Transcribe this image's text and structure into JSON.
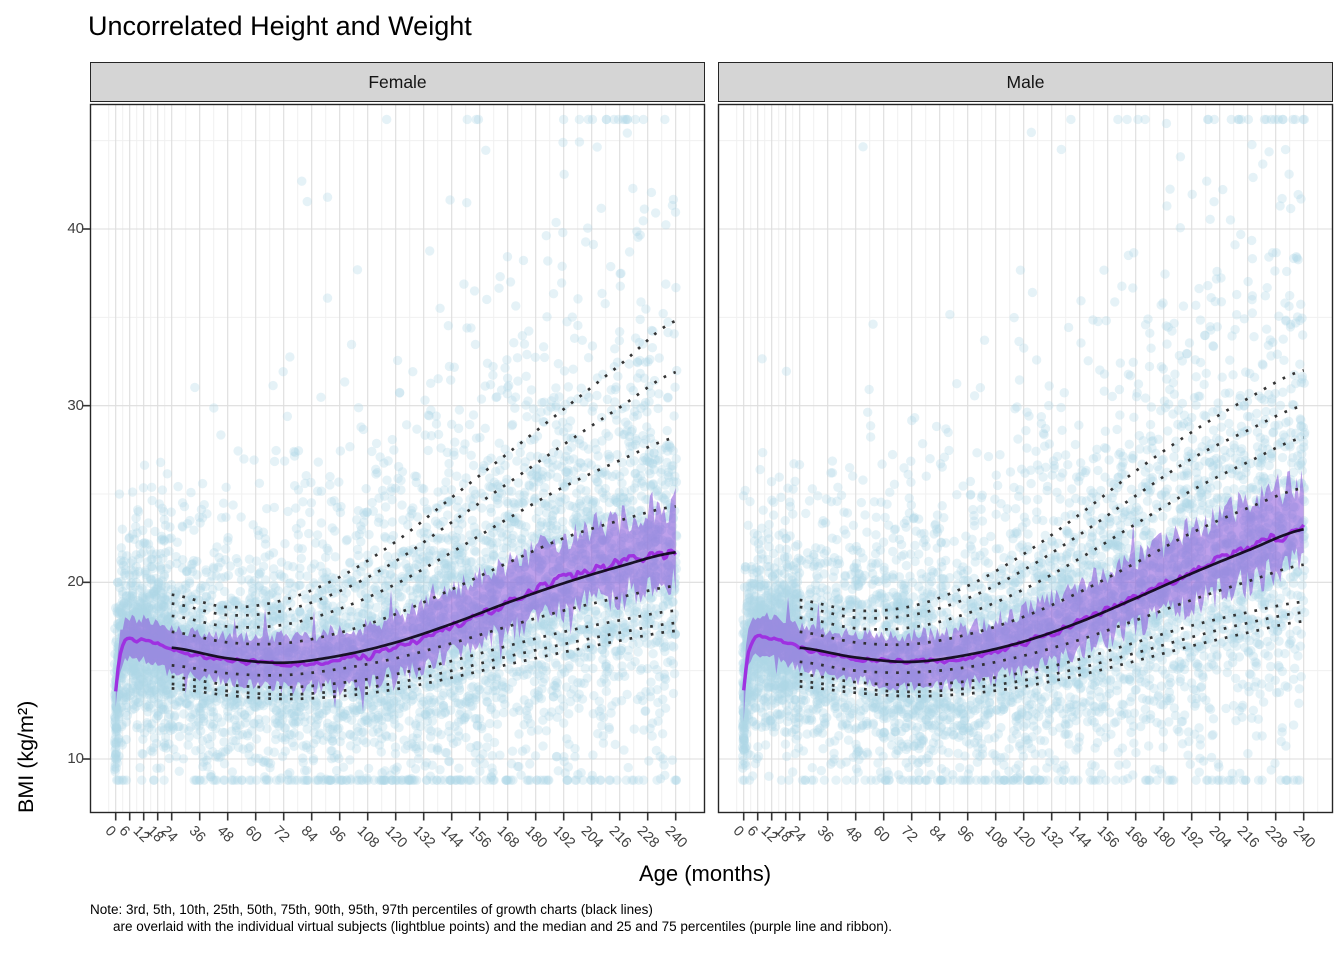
{
  "title": "Uncorrelated Height and Weight",
  "note": {
    "line1": "Note: 3rd, 5th, 10th, 25th, 50th, 75th, 90th, 95th, 97th percentiles of growth charts (black lines)",
    "line2": "are overlaid with the individual virtual subjects (lightblue points) and the median and 25 and 75 percentiles (purple line and ribbon)."
  },
  "chart_data": {
    "type": "scatter",
    "title": "Uncorrelated Height and Weight",
    "xlabel": "Age (months)",
    "ylabel": "BMI (kg/m²)",
    "x_ticks": [
      0,
      6,
      12,
      18,
      24,
      36,
      48,
      60,
      72,
      84,
      96,
      108,
      120,
      132,
      144,
      156,
      168,
      180,
      192,
      204,
      216,
      228,
      240
    ],
    "y_ticks": [
      10,
      20,
      30,
      40
    ],
    "y_minor": [
      15,
      25,
      35,
      45
    ],
    "xlim": [
      -11,
      252
    ],
    "ylim": [
      6.95,
      47.0
    ],
    "grid": true,
    "percentile_labels": [
      "3rd",
      "5th",
      "10th",
      "25th",
      "50th",
      "75th",
      "90th",
      "95th",
      "97th"
    ],
    "facets": [
      {
        "label": "Female",
        "seed": 7,
        "growth": {
          "months": [
            24,
            48,
            72,
            96,
            120,
            144,
            168,
            192,
            216,
            240
          ],
          "p3": [
            14.0,
            13.6,
            13.4,
            13.55,
            13.95,
            14.6,
            15.35,
            16.05,
            16.7,
            17.25
          ],
          "p5": [
            14.25,
            13.85,
            13.65,
            13.85,
            14.3,
            15.0,
            15.8,
            16.5,
            17.15,
            17.7
          ],
          "p10": [
            14.65,
            14.2,
            14.05,
            14.3,
            14.8,
            15.55,
            16.4,
            17.2,
            17.85,
            18.4
          ],
          "p25": [
            15.3,
            14.85,
            14.75,
            15.1,
            15.7,
            16.55,
            17.5,
            18.4,
            19.15,
            19.8
          ],
          "p50": [
            16.3,
            15.7,
            15.45,
            15.85,
            16.6,
            17.65,
            18.85,
            19.95,
            20.9,
            21.7
          ],
          "p75": [
            17.2,
            16.6,
            16.55,
            17.15,
            18.2,
            19.6,
            21.1,
            22.5,
            23.5,
            24.3
          ],
          "p90": [
            18.1,
            17.5,
            17.6,
            18.5,
            19.9,
            21.7,
            23.6,
            25.4,
            26.9,
            28.2
          ],
          "p95": [
            18.8,
            18.15,
            18.4,
            19.5,
            21.2,
            23.4,
            25.6,
            27.8,
            29.9,
            31.9
          ],
          "p97": [
            19.3,
            18.6,
            19.0,
            20.3,
            22.3,
            24.8,
            27.3,
            29.8,
            32.3,
            34.8
          ]
        },
        "virtual": {
          "months": [
            0,
            1,
            2,
            4,
            6,
            9,
            12,
            15,
            18,
            21,
            24,
            30,
            36,
            48,
            60,
            72,
            84,
            96,
            108,
            120,
            132,
            144,
            156,
            168,
            180,
            192,
            204,
            216,
            228,
            240
          ],
          "q25": [
            13.1,
            14.3,
            15.1,
            15.6,
            15.65,
            15.55,
            15.6,
            15.45,
            15.4,
            15.2,
            15.05,
            14.82,
            14.65,
            14.35,
            14.15,
            14.05,
            14.05,
            14.15,
            14.3,
            14.78,
            15.25,
            15.9,
            16.56,
            17.22,
            17.88,
            18.45,
            18.9,
            19.26,
            19.58,
            19.8
          ],
          "q50": [
            13.9,
            15.2,
            16.1,
            16.7,
            16.8,
            16.7,
            16.75,
            16.6,
            16.55,
            16.35,
            16.2,
            16.0,
            15.85,
            15.6,
            15.45,
            15.4,
            15.45,
            15.6,
            15.8,
            16.3,
            16.8,
            17.5,
            18.2,
            18.9,
            19.6,
            20.2,
            20.7,
            21.1,
            21.45,
            21.7
          ],
          "q75": [
            14.7,
            16.15,
            17.15,
            17.85,
            18.0,
            17.9,
            17.95,
            17.8,
            17.75,
            17.55,
            17.4,
            17.25,
            17.15,
            16.98,
            16.9,
            16.9,
            17.0,
            17.2,
            17.5,
            18.1,
            18.68,
            19.45,
            20.25,
            21.05,
            21.85,
            22.6,
            23.2,
            23.7,
            24.1,
            24.4
          ]
        }
      },
      {
        "label": "Male",
        "seed": 13,
        "growth": {
          "months": [
            24,
            48,
            72,
            96,
            120,
            144,
            168,
            192,
            216,
            240
          ],
          "p3": [
            14.1,
            13.75,
            13.55,
            13.7,
            14.1,
            14.75,
            15.55,
            16.4,
            17.15,
            17.8
          ],
          "p5": [
            14.4,
            14.0,
            13.8,
            14.0,
            14.45,
            15.15,
            16.0,
            16.9,
            17.7,
            18.3
          ],
          "p10": [
            14.8,
            14.35,
            14.2,
            14.4,
            14.9,
            15.65,
            16.6,
            17.55,
            18.3,
            18.9
          ],
          "p25": [
            15.5,
            15.0,
            14.9,
            15.2,
            15.85,
            16.75,
            17.85,
            19.0,
            20.05,
            21.0
          ],
          "p50": [
            16.3,
            15.75,
            15.5,
            15.9,
            16.65,
            17.75,
            19.1,
            20.5,
            21.8,
            23.0
          ],
          "p75": [
            17.2,
            16.6,
            16.5,
            17.05,
            18.05,
            19.45,
            21.1,
            22.8,
            24.2,
            25.35
          ],
          "p90": [
            18.0,
            17.4,
            17.45,
            18.25,
            19.6,
            21.35,
            23.3,
            25.2,
            26.8,
            28.2
          ],
          "p95": [
            18.6,
            18.0,
            18.15,
            19.1,
            20.7,
            22.7,
            24.9,
            27.0,
            28.6,
            30.0
          ],
          "p97": [
            19.0,
            18.4,
            18.65,
            19.8,
            21.6,
            23.85,
            26.3,
            28.5,
            30.4,
            32.0
          ]
        },
        "virtual": {
          "months": [
            0,
            1,
            2,
            4,
            6,
            9,
            12,
            15,
            18,
            21,
            24,
            30,
            36,
            48,
            60,
            72,
            84,
            96,
            108,
            120,
            132,
            144,
            156,
            168,
            180,
            192,
            204,
            216,
            228,
            240
          ],
          "q25": [
            13.2,
            14.4,
            15.2,
            15.7,
            15.85,
            15.75,
            15.7,
            15.6,
            15.45,
            15.3,
            15.15,
            14.92,
            14.75,
            14.45,
            14.25,
            14.15,
            14.15,
            14.3,
            14.6,
            15.08,
            15.6,
            16.2,
            16.86,
            17.52,
            18.18,
            18.85,
            19.5,
            20.06,
            20.63,
            21.1
          ],
          "q50": [
            14.0,
            15.3,
            16.2,
            16.8,
            17.0,
            16.9,
            16.85,
            16.75,
            16.6,
            16.45,
            16.3,
            16.1,
            15.95,
            15.7,
            15.55,
            15.5,
            15.55,
            15.75,
            16.1,
            16.6,
            17.15,
            17.8,
            18.5,
            19.2,
            19.9,
            20.6,
            21.3,
            21.9,
            22.5,
            23.0
          ],
          "q75": [
            14.8,
            16.25,
            17.25,
            17.95,
            18.2,
            18.1,
            18.05,
            17.95,
            17.8,
            17.65,
            17.5,
            17.35,
            17.25,
            17.08,
            17.0,
            17.0,
            17.1,
            17.35,
            17.8,
            18.4,
            19.03,
            19.75,
            20.55,
            21.35,
            22.15,
            23.0,
            23.8,
            24.5,
            25.15,
            25.7
          ]
        }
      }
    ],
    "points": {
      "per_facet": 5900,
      "extra_young": 520,
      "birth_strip": 48,
      "radius": 4.7,
      "alpha": 0.32,
      "color": "#ADD8E6",
      "sigma_hi_base": 1.7,
      "sigma_hi_gain": 4.3,
      "skew_hi": 0.5,
      "sigma_lo_base": 1.8,
      "sigma_lo_gain": 2.6,
      "skew_lo": 0.35,
      "bmi_clamp": [
        8.8,
        46.2
      ]
    },
    "style": {
      "ribbon": "rgba(136,82,219,0.55)",
      "median_line": "rgba(158,44,224,0.95)",
      "growth_median_line": "rgba(12,8,22,0.92)",
      "dotted_line": "rgba(42,42,42,0.95)",
      "grid_major": "#dddddd",
      "grid_minor": "#f0f0f0",
      "panel_border": "#262626",
      "tick_color": "#333333",
      "strip_fill": "#d5d5d5",
      "axis_text": "#404040"
    }
  }
}
